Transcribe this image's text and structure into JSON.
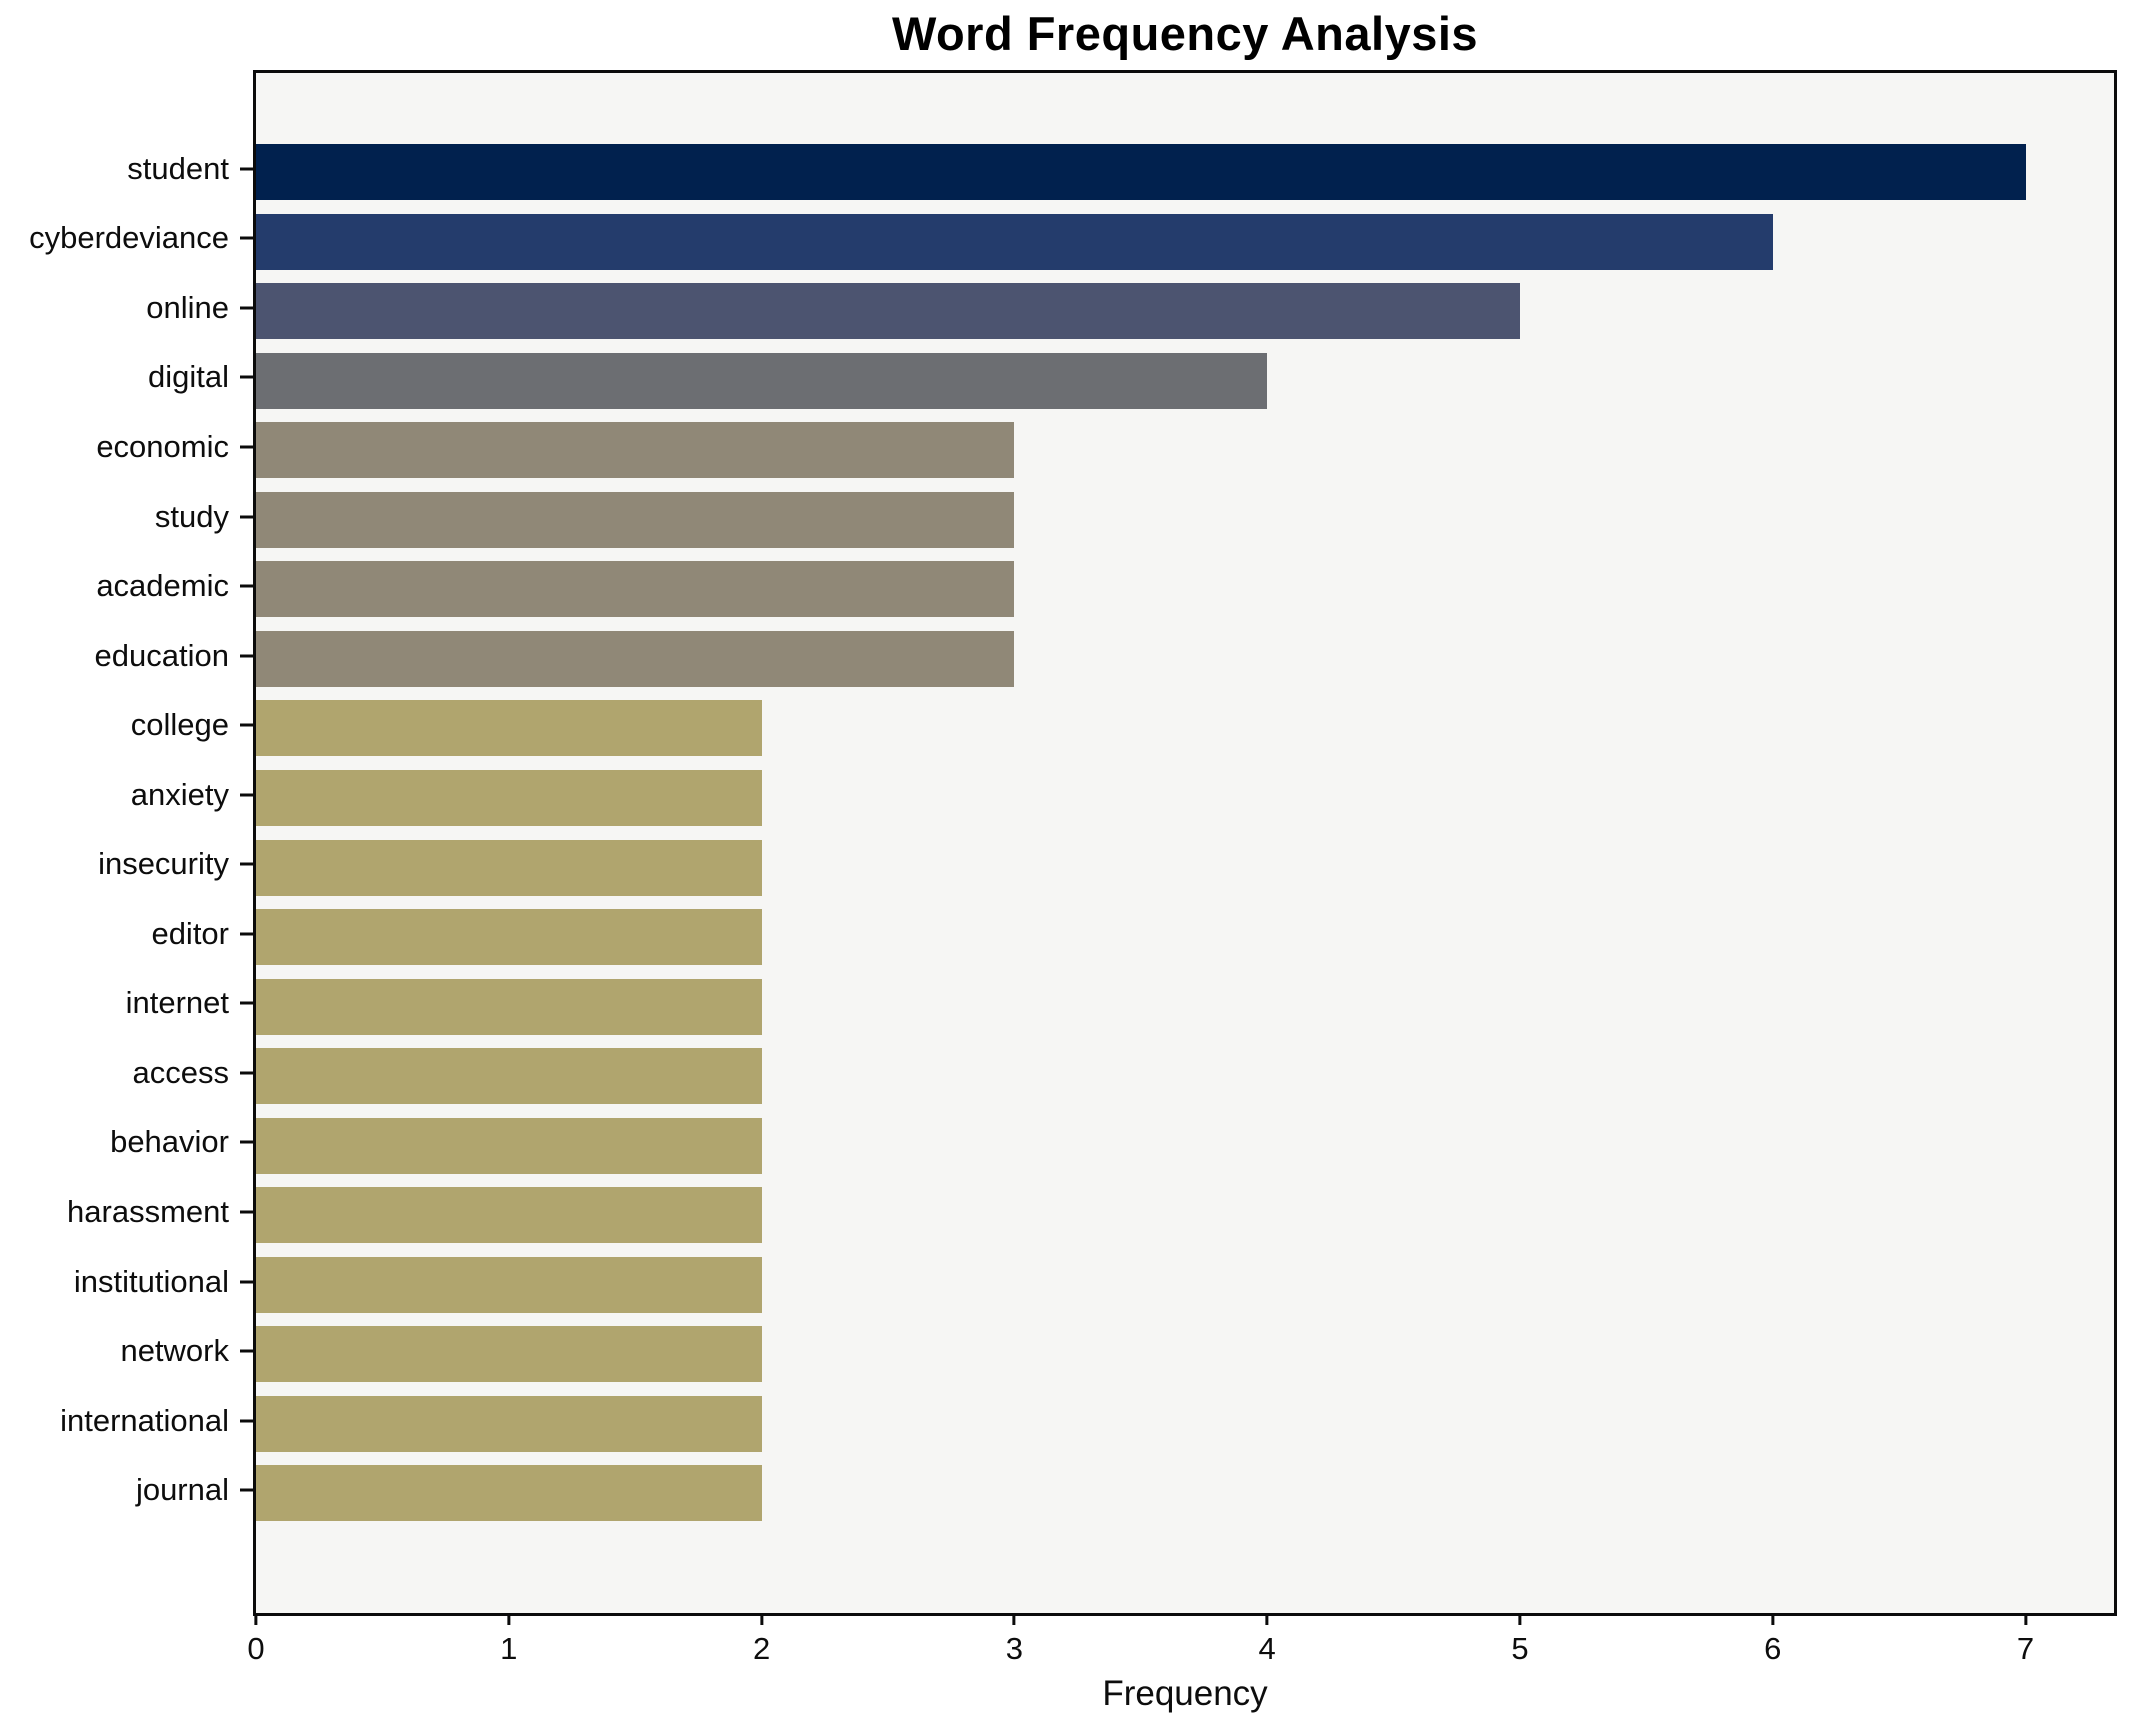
{
  "title": "Word Frequency Analysis",
  "xlabel": "Frequency",
  "colors": {
    "figure_background": "#ffffff",
    "plot_background": "#f6f6f4",
    "spine": "#0b0b0b",
    "text": "#0d0d0d"
  },
  "chart_data": {
    "type": "bar",
    "orientation": "horizontal",
    "title": "Word Frequency Analysis",
    "xlabel": "Frequency",
    "ylabel": "",
    "categories": [
      "student",
      "cyberdeviance",
      "online",
      "digital",
      "economic",
      "study",
      "academic",
      "education",
      "college",
      "anxiety",
      "insecurity",
      "editor",
      "internet",
      "access",
      "behavior",
      "harassment",
      "institutional",
      "network",
      "international",
      "journal"
    ],
    "values": [
      7,
      6,
      5,
      4,
      3,
      3,
      3,
      3,
      2,
      2,
      2,
      2,
      2,
      2,
      2,
      2,
      2,
      2,
      2,
      2
    ],
    "bar_colors": [
      "#01214e",
      "#243c6c",
      "#4c5470",
      "#6c6e72",
      "#908877",
      "#908877",
      "#908877",
      "#908877",
      "#b0a56e",
      "#b0a56e",
      "#b0a56e",
      "#b0a56e",
      "#b0a56e",
      "#b0a56e",
      "#b0a56e",
      "#b0a56e",
      "#b0a56e",
      "#b0a56e",
      "#b0a56e",
      "#b0a56e"
    ],
    "xlim": [
      0,
      7.35
    ],
    "x_ticks": [
      0,
      1,
      2,
      3,
      4,
      5,
      6,
      7
    ],
    "grid": false,
    "legend": false,
    "colormap_hint": "cividis reversed by value (high=dark navy, low=khaki)"
  }
}
